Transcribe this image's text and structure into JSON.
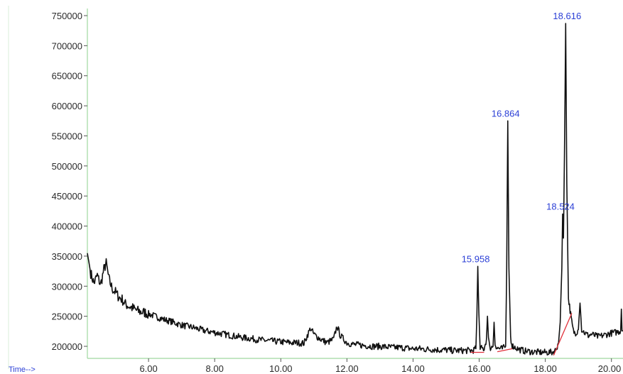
{
  "chart_data": {
    "type": "line",
    "x_axis_label": "Time-->",
    "x_ticks": [
      "6.00",
      "8.00",
      "10.00",
      "12.00",
      "14.00",
      "16.00",
      "18.00",
      "20.00"
    ],
    "x_tick_values": [
      6,
      8,
      10,
      12,
      14,
      16,
      18,
      20
    ],
    "y_ticks": [
      "200000",
      "250000",
      "300000",
      "350000",
      "400000",
      "450000",
      "500000",
      "550000",
      "600000",
      "650000",
      "700000",
      "750000"
    ],
    "y_tick_values": [
      200000,
      250000,
      300000,
      350000,
      400000,
      450000,
      500000,
      550000,
      600000,
      650000,
      700000,
      750000
    ],
    "xlim": [
      4.15,
      20.35
    ],
    "ylim": [
      183000,
      755000
    ],
    "grid": false,
    "colors": {
      "trace": "#111111",
      "baseline": "#e0303a",
      "peak_label": "#2b3fd6",
      "axis": "#9fd89f"
    },
    "peak_labels": [
      {
        "text": "15.958",
        "x": 15.958,
        "y": 333000
      },
      {
        "text": "16.864",
        "x": 16.864,
        "y": 575000
      },
      {
        "text": "18.524",
        "x": 18.524,
        "y": 420000
      },
      {
        "text": "18.616",
        "x": 18.616,
        "y": 737000
      }
    ],
    "series": [
      {
        "values": [
          [
            4.15,
            355000
          ],
          [
            4.25,
            322000
          ],
          [
            4.35,
            305000
          ],
          [
            4.45,
            318000
          ],
          [
            4.55,
            302000
          ],
          [
            4.65,
            328000
          ],
          [
            4.72,
            338000
          ],
          [
            4.8,
            312000
          ],
          [
            4.9,
            296000
          ],
          [
            5.0,
            290000
          ],
          [
            5.1,
            282000
          ],
          [
            5.2,
            278000
          ],
          [
            5.3,
            270000
          ],
          [
            5.5,
            264000
          ],
          [
            5.7,
            258000
          ],
          [
            5.9,
            256000
          ],
          [
            6.1,
            252000
          ],
          [
            6.3,
            248000
          ],
          [
            6.5,
            244000
          ],
          [
            6.7,
            241000
          ],
          [
            6.9,
            237000
          ],
          [
            7.1,
            234000
          ],
          [
            7.3,
            232000
          ],
          [
            7.5,
            229000
          ],
          [
            7.7,
            226000
          ],
          [
            7.9,
            224000
          ],
          [
            8.1,
            222000
          ],
          [
            8.3,
            220000
          ],
          [
            8.5,
            218000
          ],
          [
            8.7,
            216000
          ],
          [
            8.9,
            214000
          ],
          [
            9.1,
            213000
          ],
          [
            9.3,
            211000
          ],
          [
            9.5,
            210000
          ],
          [
            9.7,
            209000
          ],
          [
            9.9,
            208000
          ],
          [
            10.1,
            207000
          ],
          [
            10.3,
            206000
          ],
          [
            10.5,
            206000
          ],
          [
            10.7,
            205000
          ],
          [
            10.8,
            218000
          ],
          [
            10.9,
            230000
          ],
          [
            11.0,
            220000
          ],
          [
            11.2,
            212000
          ],
          [
            11.4,
            206000
          ],
          [
            11.6,
            212000
          ],
          [
            11.7,
            234000
          ],
          [
            11.8,
            218000
          ],
          [
            12.0,
            206000
          ],
          [
            12.2,
            203000
          ],
          [
            12.4,
            202000
          ],
          [
            12.6,
            201000
          ],
          [
            12.8,
            200000
          ],
          [
            13.0,
            200000
          ],
          [
            13.2,
            199000
          ],
          [
            13.4,
            198000
          ],
          [
            13.6,
            198000
          ],
          [
            13.8,
            197000
          ],
          [
            14.0,
            196000
          ],
          [
            14.2,
            196000
          ],
          [
            14.4,
            195000
          ],
          [
            14.6,
            195000
          ],
          [
            14.8,
            194000
          ],
          [
            15.0,
            194000
          ],
          [
            15.2,
            193000
          ],
          [
            15.4,
            193000
          ],
          [
            15.6,
            193000
          ],
          [
            15.8,
            193000
          ],
          [
            15.9,
            196000
          ],
          [
            15.93,
            250000
          ],
          [
            15.958,
            333000
          ],
          [
            15.99,
            255000
          ],
          [
            16.03,
            197000
          ],
          [
            16.15,
            196000
          ],
          [
            16.22,
            212000
          ],
          [
            16.25,
            250000
          ],
          [
            16.28,
            214000
          ],
          [
            16.32,
            197000
          ],
          [
            16.42,
            200000
          ],
          [
            16.45,
            240000
          ],
          [
            16.48,
            204000
          ],
          [
            16.55,
            197000
          ],
          [
            16.7,
            196000
          ],
          [
            16.8,
            200000
          ],
          [
            16.83,
            320000
          ],
          [
            16.864,
            575000
          ],
          [
            16.9,
            330000
          ],
          [
            16.95,
            215000
          ],
          [
            17.0,
            201000
          ],
          [
            17.2,
            195000
          ],
          [
            17.4,
            192000
          ],
          [
            17.6,
            191000
          ],
          [
            17.8,
            190000
          ],
          [
            18.0,
            190000
          ],
          [
            18.2,
            190000
          ],
          [
            18.3,
            193000
          ],
          [
            18.4,
            205000
          ],
          [
            18.45,
            240000
          ],
          [
            18.5,
            330000
          ],
          [
            18.524,
            420000
          ],
          [
            18.55,
            380000
          ],
          [
            18.58,
            520000
          ],
          [
            18.616,
            737000
          ],
          [
            18.65,
            470000
          ],
          [
            18.7,
            280000
          ],
          [
            18.75,
            260000
          ],
          [
            18.8,
            240000
          ],
          [
            18.85,
            225000
          ],
          [
            18.9,
            222000
          ],
          [
            18.95,
            224000
          ],
          [
            19.0,
            228000
          ],
          [
            19.05,
            272000
          ],
          [
            19.1,
            228000
          ],
          [
            19.2,
            222000
          ],
          [
            19.3,
            218000
          ],
          [
            19.4,
            220000
          ],
          [
            19.6,
            216000
          ],
          [
            19.8,
            219000
          ],
          [
            20.0,
            222000
          ],
          [
            20.2,
            224000
          ],
          [
            20.28,
            226000
          ],
          [
            20.3,
            262000
          ],
          [
            20.32,
            228000
          ],
          [
            20.35,
            226000
          ]
        ]
      }
    ],
    "baseline_segments": [
      [
        [
          15.75,
          190000
        ],
        [
          16.15,
          190000
        ]
      ],
      [
        [
          16.55,
          191000
        ],
        [
          17.0,
          196000
        ]
      ],
      [
        [
          18.25,
          185000
        ],
        [
          18.62,
          232000
        ],
        [
          18.8,
          255000
        ]
      ]
    ]
  }
}
